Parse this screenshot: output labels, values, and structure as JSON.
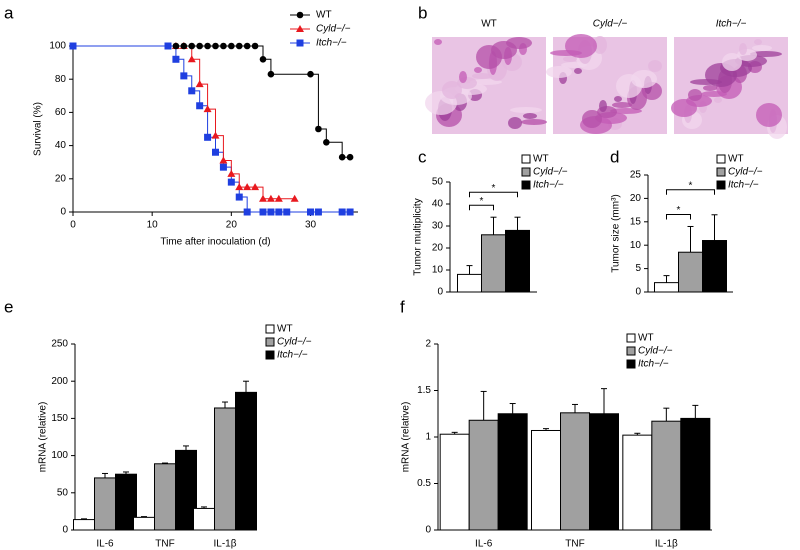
{
  "chart_data": [
    {
      "panel": "a",
      "type": "line",
      "step": true,
      "xlabel": "Time after inoculation (d)",
      "ylabel": "Survival (%)",
      "xlim": [
        0,
        36
      ],
      "xticks": [
        0,
        10,
        20,
        30
      ],
      "ylim": [
        0,
        100
      ],
      "yticks": [
        0,
        20,
        40,
        60,
        80,
        100
      ],
      "legend": "upper right",
      "series": [
        {
          "name": "WT",
          "color": "#000000",
          "marker": "circle",
          "italic": false,
          "x": [
            13,
            14,
            15,
            16,
            17,
            18,
            19,
            20,
            21,
            22,
            23,
            24,
            25,
            30,
            31,
            32,
            34,
            35
          ],
          "values": [
            100,
            100,
            100,
            100,
            100,
            100,
            100,
            100,
            100,
            100,
            100,
            92,
            83,
            83,
            50,
            42,
            33,
            33
          ]
        },
        {
          "name": "Cyld−/−",
          "color": "#e8191f",
          "marker": "triangle",
          "italic": true,
          "x": [
            13,
            14,
            15,
            16,
            17,
            18,
            19,
            20,
            21,
            22,
            23,
            24,
            25,
            26,
            28
          ],
          "values": [
            100,
            100,
            92,
            77,
            62,
            46,
            31,
            23,
            15,
            15,
            15,
            8,
            8,
            8,
            8
          ]
        },
        {
          "name": "Itch−/−",
          "color": "#1f3fe0",
          "marker": "square",
          "italic": true,
          "x": [
            0,
            12,
            13,
            14,
            15,
            16,
            17,
            18,
            19,
            20,
            21,
            22,
            24,
            25,
            26,
            27,
            30,
            31,
            34,
            35
          ],
          "values": [
            100,
            100,
            92,
            82,
            73,
            64,
            45,
            36,
            27,
            18,
            9,
            0,
            0,
            0,
            0,
            0,
            0,
            0,
            0,
            0
          ]
        }
      ]
    },
    {
      "panel": "b",
      "type": "images",
      "labels": [
        "WT",
        "Cyld−/−",
        "Itch−/−"
      ],
      "italic": [
        false,
        true,
        true
      ]
    },
    {
      "panel": "c",
      "type": "bar",
      "ylabel": "Tumor multiplicity",
      "ylim": [
        0,
        50
      ],
      "yticks": [
        0,
        10,
        20,
        30,
        40,
        50
      ],
      "categories": [
        null
      ],
      "annotations": [
        "*",
        "*"
      ],
      "series": [
        {
          "name": "WT",
          "color": "#ffffff",
          "italic": false,
          "values": [
            8
          ],
          "errors": [
            4
          ]
        },
        {
          "name": "Cyld−/−",
          "color": "#a0a0a0",
          "italic": true,
          "values": [
            26
          ],
          "errors": [
            8
          ]
        },
        {
          "name": "Itch−/−",
          "color": "#000000",
          "italic": true,
          "values": [
            28
          ],
          "errors": [
            6
          ]
        }
      ]
    },
    {
      "panel": "d",
      "type": "bar",
      "ylabel": "Tumor size (mm³)",
      "ylim": [
        0,
        25
      ],
      "yticks": [
        0,
        5,
        10,
        15,
        20,
        25
      ],
      "categories": [
        null
      ],
      "annotations": [
        "*",
        "*"
      ],
      "series": [
        {
          "name": "WT",
          "color": "#ffffff",
          "italic": false,
          "values": [
            2
          ],
          "errors": [
            1.5
          ]
        },
        {
          "name": "Cyld−/−",
          "color": "#a0a0a0",
          "italic": true,
          "values": [
            8.5
          ],
          "errors": [
            5.5
          ]
        },
        {
          "name": "Itch−/−",
          "color": "#000000",
          "italic": true,
          "values": [
            11
          ],
          "errors": [
            5.5
          ]
        }
      ]
    },
    {
      "panel": "e",
      "type": "bar",
      "ylabel": "mRNA (relative)",
      "ylim": [
        0,
        250
      ],
      "yticks": [
        0,
        50,
        100,
        150,
        200,
        250
      ],
      "categories": [
        "IL-6",
        "TNF",
        "IL-1β"
      ],
      "series": [
        {
          "name": "WT",
          "color": "#ffffff",
          "italic": false,
          "values": [
            14,
            17,
            29
          ],
          "errors": [
            1,
            1,
            2
          ]
        },
        {
          "name": "Cyld−/−",
          "color": "#a0a0a0",
          "italic": true,
          "values": [
            70,
            89,
            164
          ],
          "errors": [
            6,
            1,
            8
          ]
        },
        {
          "name": "Itch−/−",
          "color": "#000000",
          "italic": true,
          "values": [
            75,
            107,
            185
          ],
          "errors": [
            3,
            6,
            15
          ]
        }
      ]
    },
    {
      "panel": "f",
      "type": "bar",
      "ylabel": "mRNA (relative)",
      "ylim": [
        0,
        2
      ],
      "yticks": [
        0,
        0.5,
        1,
        1.5,
        2
      ],
      "categories": [
        "IL-6",
        "TNF",
        "IL-1β"
      ],
      "series": [
        {
          "name": "WT",
          "color": "#ffffff",
          "italic": false,
          "values": [
            1.03,
            1.07,
            1.02
          ],
          "errors": [
            0.02,
            0.02,
            0.02
          ]
        },
        {
          "name": "Cyld−/−",
          "color": "#a0a0a0",
          "italic": true,
          "values": [
            1.18,
            1.26,
            1.17
          ],
          "errors": [
            0.31,
            0.09,
            0.14
          ]
        },
        {
          "name": "Itch−/−",
          "color": "#000000",
          "italic": true,
          "values": [
            1.25,
            1.25,
            1.2
          ],
          "errors": [
            0.11,
            0.27,
            0.14
          ]
        }
      ]
    }
  ]
}
